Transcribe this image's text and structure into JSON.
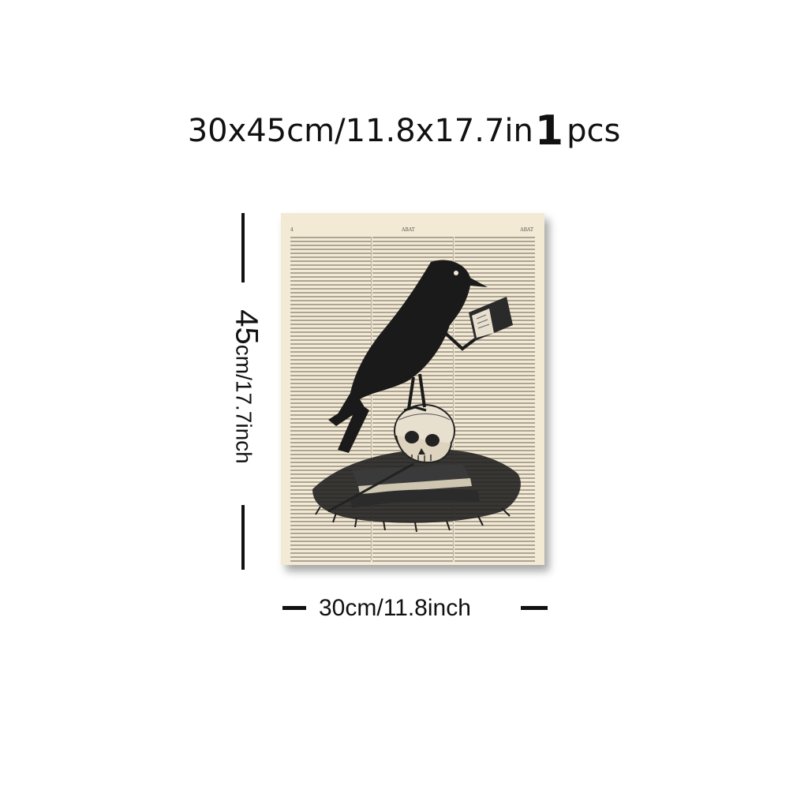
{
  "headline": {
    "size_text": "30x45cm/11.8x17.7in",
    "quantity": "1",
    "unit": "pcs"
  },
  "artwork": {
    "subject": "crow perched on a skull holding a book, over dictionary page",
    "page_number": "4",
    "running_head_left": "ABAT",
    "running_head_right": "ABAT",
    "paper_color": "#f3ead6",
    "ink_color": "#1a1a1a"
  },
  "dimensions": {
    "height_big": "45",
    "height_small": "cm/17.7inch",
    "width_label": "30cm/11.8inch"
  }
}
